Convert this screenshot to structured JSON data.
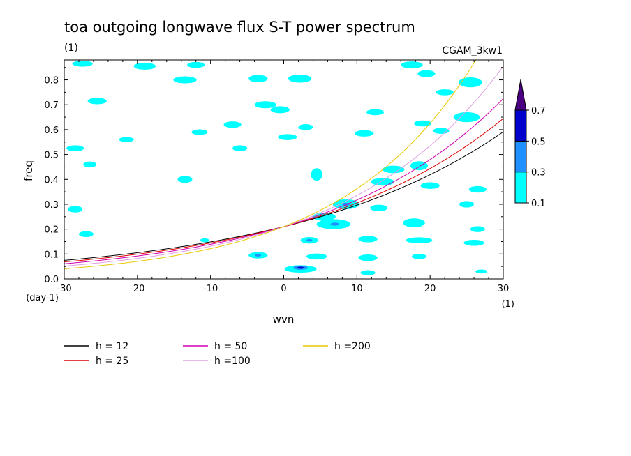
{
  "chart_data": {
    "type": "heatmap",
    "title": "toa outgoing longwave flux S-T power spectrum",
    "subtitle": "(1)",
    "model_label": "CGAM_3kw1",
    "xlabel": "wvn",
    "ylabel": "freq",
    "x_unit": "(1)",
    "y_unit": "(day-1)",
    "xlim": [
      -30,
      30
    ],
    "ylim": [
      0,
      0.88
    ],
    "x_ticks": [
      -30,
      -20,
      -10,
      0,
      10,
      20,
      30
    ],
    "x_tick_labels": [
      "-30",
      "-20",
      "-10",
      "0",
      "10",
      "20",
      "30"
    ],
    "y_ticks": [
      0,
      0.1,
      0.2,
      0.3,
      0.4,
      0.5,
      0.6,
      0.7,
      0.8
    ],
    "y_tick_labels": [
      "0.0",
      "0.1",
      "0.2",
      "0.3",
      "0.4",
      "0.5",
      "0.6",
      "0.7",
      "0.8"
    ],
    "contour_levels": [
      0.1,
      0.3,
      0.5,
      0.7
    ],
    "contour_level_labels": [
      "0.1",
      "0.3",
      "0.5",
      "0.7"
    ],
    "level_colors": [
      "#00ffff",
      "#1e90ff",
      "#0000cd",
      "#4b0082"
    ],
    "dispersion_curves": [
      {
        "name": "h = 12",
        "h": 12,
        "color": "#000000"
      },
      {
        "name": "h = 25",
        "h": 25,
        "color": "#e00000"
      },
      {
        "name": "h = 50",
        "h": 50,
        "color": "#d000b0"
      },
      {
        "name": "h =100",
        "h": 100,
        "color": "#e0a0e0"
      },
      {
        "name": "h =200",
        "h": 200,
        "color": "#e8c800"
      }
    ],
    "blobs": [
      {
        "x": -27.5,
        "y": 0.865,
        "rx": 1.4,
        "ry": 0.012,
        "level": 0
      },
      {
        "x": -19,
        "y": 0.855,
        "rx": 1.5,
        "ry": 0.014,
        "level": 0
      },
      {
        "x": -12,
        "y": 0.86,
        "rx": 1.2,
        "ry": 0.012,
        "level": 0
      },
      {
        "x": 17.5,
        "y": 0.86,
        "rx": 1.5,
        "ry": 0.014,
        "level": 0
      },
      {
        "x": 19.5,
        "y": 0.825,
        "rx": 1.2,
        "ry": 0.014,
        "level": 0
      },
      {
        "x": -13.5,
        "y": 0.8,
        "rx": 1.6,
        "ry": 0.014,
        "level": 0
      },
      {
        "x": -3.5,
        "y": 0.805,
        "rx": 1.3,
        "ry": 0.015,
        "level": 0
      },
      {
        "x": 2.2,
        "y": 0.805,
        "rx": 1.6,
        "ry": 0.016,
        "level": 0
      },
      {
        "x": 25.5,
        "y": 0.79,
        "rx": 1.6,
        "ry": 0.02,
        "level": 0
      },
      {
        "x": 22,
        "y": 0.75,
        "rx": 1.2,
        "ry": 0.012,
        "level": 0
      },
      {
        "x": -25.5,
        "y": 0.715,
        "rx": 1.3,
        "ry": 0.013,
        "level": 0
      },
      {
        "x": -2.5,
        "y": 0.7,
        "rx": 1.5,
        "ry": 0.014,
        "level": 0
      },
      {
        "x": -0.5,
        "y": 0.68,
        "rx": 1.3,
        "ry": 0.014,
        "level": 0
      },
      {
        "x": 12.5,
        "y": 0.67,
        "rx": 1.2,
        "ry": 0.012,
        "level": 0
      },
      {
        "x": 25,
        "y": 0.65,
        "rx": 1.8,
        "ry": 0.02,
        "level": 0
      },
      {
        "x": -7,
        "y": 0.62,
        "rx": 1.2,
        "ry": 0.013,
        "level": 0
      },
      {
        "x": 3,
        "y": 0.61,
        "rx": 1.0,
        "ry": 0.012,
        "level": 0
      },
      {
        "x": 19,
        "y": 0.625,
        "rx": 1.2,
        "ry": 0.012,
        "level": 0
      },
      {
        "x": -11.5,
        "y": 0.59,
        "rx": 1.1,
        "ry": 0.011,
        "level": 0
      },
      {
        "x": 11,
        "y": 0.585,
        "rx": 1.3,
        "ry": 0.013,
        "level": 0
      },
      {
        "x": 21.5,
        "y": 0.595,
        "rx": 1.1,
        "ry": 0.012,
        "level": 0
      },
      {
        "x": 0.5,
        "y": 0.57,
        "rx": 1.3,
        "ry": 0.012,
        "level": 0
      },
      {
        "x": -21.5,
        "y": 0.56,
        "rx": 1.0,
        "ry": 0.01,
        "level": 0
      },
      {
        "x": -28.5,
        "y": 0.525,
        "rx": 1.2,
        "ry": 0.012,
        "level": 0
      },
      {
        "x": -6,
        "y": 0.525,
        "rx": 1.0,
        "ry": 0.012,
        "level": 0
      },
      {
        "x": -26.5,
        "y": 0.46,
        "rx": 0.9,
        "ry": 0.012,
        "level": 0
      },
      {
        "x": 4.5,
        "y": 0.42,
        "rx": 0.8,
        "ry": 0.025,
        "level": 0
      },
      {
        "x": 15,
        "y": 0.44,
        "rx": 1.5,
        "ry": 0.015,
        "level": 0
      },
      {
        "x": 18.5,
        "y": 0.455,
        "rx": 1.2,
        "ry": 0.018,
        "level": 0
      },
      {
        "x": -13.5,
        "y": 0.4,
        "rx": 1.0,
        "ry": 0.014,
        "level": 0
      },
      {
        "x": 13.5,
        "y": 0.39,
        "rx": 1.6,
        "ry": 0.015,
        "level": 0
      },
      {
        "x": 20,
        "y": 0.375,
        "rx": 1.3,
        "ry": 0.013,
        "level": 0
      },
      {
        "x": 26.5,
        "y": 0.36,
        "rx": 1.2,
        "ry": 0.013,
        "level": 0
      },
      {
        "x": -28.5,
        "y": 0.28,
        "rx": 1.0,
        "ry": 0.013,
        "level": 0
      },
      {
        "x": 8.5,
        "y": 0.3,
        "rx": 1.8,
        "ry": 0.02,
        "level": 0
      },
      {
        "x": 8.5,
        "y": 0.3,
        "rx": 0.5,
        "ry": 0.006,
        "level": 1
      },
      {
        "x": 13,
        "y": 0.285,
        "rx": 1.2,
        "ry": 0.013,
        "level": 0
      },
      {
        "x": 25,
        "y": 0.3,
        "rx": 1.0,
        "ry": 0.013,
        "level": 0
      },
      {
        "x": 5.5,
        "y": 0.25,
        "rx": 1.6,
        "ry": 0.016,
        "level": 0
      },
      {
        "x": 6.8,
        "y": 0.22,
        "rx": 2.3,
        "ry": 0.02,
        "level": 0
      },
      {
        "x": 7,
        "y": 0.22,
        "rx": 0.6,
        "ry": 0.006,
        "level": 1
      },
      {
        "x": 17.8,
        "y": 0.225,
        "rx": 1.5,
        "ry": 0.018,
        "level": 0
      },
      {
        "x": 26.5,
        "y": 0.2,
        "rx": 1.0,
        "ry": 0.012,
        "level": 0
      },
      {
        "x": -27,
        "y": 0.18,
        "rx": 1.0,
        "ry": 0.012,
        "level": 0
      },
      {
        "x": 3.5,
        "y": 0.155,
        "rx": 1.2,
        "ry": 0.013,
        "level": 0
      },
      {
        "x": 3.5,
        "y": 0.155,
        "rx": 0.4,
        "ry": 0.005,
        "level": 1
      },
      {
        "x": 11.5,
        "y": 0.16,
        "rx": 1.3,
        "ry": 0.013,
        "level": 0
      },
      {
        "x": 18.5,
        "y": 0.155,
        "rx": 1.8,
        "ry": 0.012,
        "level": 0
      },
      {
        "x": 26,
        "y": 0.145,
        "rx": 1.4,
        "ry": 0.012,
        "level": 0
      },
      {
        "x": -3.5,
        "y": 0.095,
        "rx": 1.3,
        "ry": 0.013,
        "level": 0
      },
      {
        "x": -3.5,
        "y": 0.095,
        "rx": 0.4,
        "ry": 0.005,
        "level": 1
      },
      {
        "x": 4.5,
        "y": 0.09,
        "rx": 1.4,
        "ry": 0.012,
        "level": 0
      },
      {
        "x": 11.5,
        "y": 0.085,
        "rx": 1.3,
        "ry": 0.013,
        "level": 0
      },
      {
        "x": 18.5,
        "y": 0.09,
        "rx": 1.0,
        "ry": 0.011,
        "level": 0
      },
      {
        "x": 2.3,
        "y": 0.04,
        "rx": 2.2,
        "ry": 0.015,
        "level": 0
      },
      {
        "x": 2.3,
        "y": 0.045,
        "rx": 1.0,
        "ry": 0.008,
        "level": 1
      },
      {
        "x": 2.3,
        "y": 0.045,
        "rx": 0.45,
        "ry": 0.004,
        "level": 2
      },
      {
        "x": 11.5,
        "y": 0.025,
        "rx": 1.0,
        "ry": 0.01,
        "level": 0
      },
      {
        "x": 27,
        "y": 0.03,
        "rx": 0.8,
        "ry": 0.008,
        "level": 0
      },
      {
        "x": -10.8,
        "y": 0.155,
        "rx": 0.6,
        "ry": 0.008,
        "level": 0
      }
    ]
  }
}
